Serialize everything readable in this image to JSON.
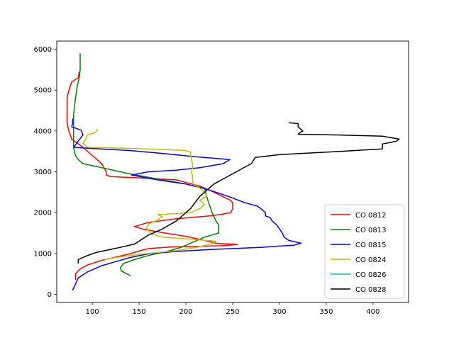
{
  "chart_data": {
    "type": "line",
    "title": "",
    "xlabel": "",
    "ylabel": "",
    "xlim": [
      62,
      438
    ],
    "ylim": [
      -200,
      6200
    ],
    "xticks": [
      "100",
      "150",
      "200",
      "250",
      "300",
      "350",
      "400"
    ],
    "yticks": [
      "0",
      "1000",
      "2000",
      "3000",
      "4000",
      "5000",
      "6000"
    ],
    "legend_position": "lower-right",
    "grid": false,
    "series": [
      {
        "name": "CO 0812",
        "color": "#ff0000",
        "points": [
          [
            82,
            350
          ],
          [
            82,
            500
          ],
          [
            87,
            620
          ],
          [
            95,
            720
          ],
          [
            110,
            830
          ],
          [
            125,
            910
          ],
          [
            140,
            990
          ],
          [
            150,
            1060
          ],
          [
            160,
            1120
          ],
          [
            185,
            1160
          ],
          [
            210,
            1170
          ],
          [
            238,
            1190
          ],
          [
            255,
            1220
          ],
          [
            232,
            1250
          ],
          [
            220,
            1320
          ],
          [
            200,
            1420
          ],
          [
            175,
            1510
          ],
          [
            155,
            1590
          ],
          [
            145,
            1660
          ],
          [
            160,
            1760
          ],
          [
            190,
            1850
          ],
          [
            230,
            1930
          ],
          [
            248,
            2000
          ],
          [
            250,
            2100
          ],
          [
            250,
            2240
          ],
          [
            248,
            2300
          ],
          [
            230,
            2500
          ],
          [
            215,
            2650
          ],
          [
            190,
            2800
          ],
          [
            150,
            2850
          ],
          [
            120,
            2880
          ],
          [
            115,
            2920
          ],
          [
            115,
            3000
          ],
          [
            110,
            3200
          ],
          [
            100,
            3400
          ],
          [
            90,
            3600
          ],
          [
            78,
            3800
          ],
          [
            75,
            4000
          ],
          [
            73,
            4200
          ],
          [
            73,
            4500
          ],
          [
            73,
            4800
          ],
          [
            75,
            5000
          ],
          [
            78,
            5200
          ],
          [
            85,
            5300
          ],
          [
            86,
            5450
          ]
        ]
      },
      {
        "name": "CO 0813",
        "color": "#008000",
        "points": [
          [
            141,
            450
          ],
          [
            137,
            500
          ],
          [
            131,
            570
          ],
          [
            130,
            650
          ],
          [
            133,
            750
          ],
          [
            145,
            850
          ],
          [
            160,
            950
          ],
          [
            180,
            1050
          ],
          [
            195,
            1150
          ],
          [
            220,
            1400
          ],
          [
            235,
            1500
          ],
          [
            235,
            1700
          ],
          [
            232,
            1800
          ],
          [
            228,
            2000
          ],
          [
            225,
            2200
          ],
          [
            222,
            2400
          ],
          [
            220,
            2600
          ],
          [
            200,
            2700
          ],
          [
            175,
            2800
          ],
          [
            140,
            2950
          ],
          [
            110,
            3100
          ],
          [
            90,
            3200
          ],
          [
            85,
            3300
          ],
          [
            82,
            3400
          ],
          [
            80,
            3600
          ],
          [
            80,
            4000
          ],
          [
            80,
            4400
          ],
          [
            82,
            4800
          ],
          [
            84,
            5100
          ],
          [
            86,
            5300
          ],
          [
            87,
            5500
          ],
          [
            87,
            5700
          ],
          [
            87,
            5900
          ]
        ]
      },
      {
        "name": "CO 0815",
        "color": "#0000ff",
        "points": [
          [
            79,
            100
          ],
          [
            82,
            250
          ],
          [
            85,
            400
          ],
          [
            95,
            550
          ],
          [
            110,
            700
          ],
          [
            125,
            800
          ],
          [
            140,
            900
          ],
          [
            160,
            990
          ],
          [
            190,
            1050
          ],
          [
            230,
            1100
          ],
          [
            280,
            1150
          ],
          [
            300,
            1180
          ],
          [
            315,
            1200
          ],
          [
            323,
            1250
          ],
          [
            310,
            1320
          ],
          [
            305,
            1400
          ],
          [
            303,
            1500
          ],
          [
            300,
            1600
          ],
          [
            297,
            1700
          ],
          [
            292,
            1800
          ],
          [
            290,
            1880
          ],
          [
            285,
            1920
          ],
          [
            285,
            2000
          ],
          [
            280,
            2100
          ],
          [
            276,
            2160
          ],
          [
            262,
            2250
          ],
          [
            245,
            2400
          ],
          [
            232,
            2500
          ],
          [
            218,
            2600
          ],
          [
            200,
            2700
          ],
          [
            170,
            2800
          ],
          [
            142,
            2920
          ],
          [
            160,
            3000
          ],
          [
            190,
            3040
          ],
          [
            215,
            3100
          ],
          [
            240,
            3200
          ],
          [
            247,
            3300
          ],
          [
            210,
            3370
          ],
          [
            175,
            3450
          ],
          [
            140,
            3520
          ],
          [
            100,
            3570
          ],
          [
            80,
            3600
          ],
          [
            85,
            3750
          ],
          [
            90,
            3900
          ],
          [
            88,
            4020
          ],
          [
            78,
            4100
          ],
          [
            79,
            4200
          ],
          [
            79,
            4300
          ]
        ]
      },
      {
        "name": "CO 0824",
        "color": "#bfbf00",
        "points": [
          [
            113,
            850
          ],
          [
            125,
            900
          ],
          [
            140,
            950
          ],
          [
            160,
            1000
          ],
          [
            190,
            1070
          ],
          [
            210,
            1140
          ],
          [
            228,
            1240
          ],
          [
            232,
            1300
          ],
          [
            205,
            1350
          ],
          [
            175,
            1400
          ],
          [
            165,
            1460
          ],
          [
            160,
            1550
          ],
          [
            158,
            1620
          ],
          [
            160,
            1720
          ],
          [
            168,
            1800
          ],
          [
            175,
            1900
          ],
          [
            170,
            1950
          ],
          [
            185,
            1970
          ],
          [
            205,
            2000
          ],
          [
            215,
            2100
          ],
          [
            220,
            2200
          ],
          [
            215,
            2300
          ],
          [
            222,
            2400
          ],
          [
            220,
            2500
          ],
          [
            215,
            2600
          ],
          [
            208,
            2700
          ],
          [
            207,
            2800
          ],
          [
            207,
            2900
          ],
          [
            206,
            3000
          ],
          [
            207,
            3100
          ],
          [
            207,
            3200
          ],
          [
            206,
            3300
          ],
          [
            205,
            3400
          ],
          [
            205,
            3480
          ],
          [
            200,
            3520
          ],
          [
            170,
            3550
          ],
          [
            130,
            3580
          ],
          [
            95,
            3600
          ],
          [
            90,
            3700
          ],
          [
            93,
            3800
          ],
          [
            95,
            3900
          ],
          [
            102,
            3950
          ],
          [
            105,
            4000
          ],
          [
            105,
            4050
          ]
        ]
      },
      {
        "name": "CO 0826",
        "color": "#00bfbf",
        "points": []
      },
      {
        "name": "CO 0828",
        "color": "#000000",
        "points": [
          [
            85,
            750
          ],
          [
            85,
            850
          ],
          [
            95,
            950
          ],
          [
            105,
            1030
          ],
          [
            120,
            1100
          ],
          [
            130,
            1150
          ],
          [
            145,
            1230
          ],
          [
            160,
            1450
          ],
          [
            175,
            1600
          ],
          [
            190,
            1800
          ],
          [
            205,
            2100
          ],
          [
            215,
            2400
          ],
          [
            230,
            2700
          ],
          [
            250,
            2950
          ],
          [
            270,
            3200
          ],
          [
            274,
            3350
          ],
          [
            300,
            3420
          ],
          [
            365,
            3500
          ],
          [
            410,
            3560
          ],
          [
            410,
            3680
          ],
          [
            425,
            3750
          ],
          [
            428,
            3800
          ],
          [
            410,
            3870
          ],
          [
            365,
            3900
          ],
          [
            320,
            3920
          ],
          [
            322,
            3960
          ],
          [
            325,
            4000
          ],
          [
            320,
            4100
          ],
          [
            320,
            4180
          ],
          [
            310,
            4200
          ]
        ]
      }
    ]
  }
}
